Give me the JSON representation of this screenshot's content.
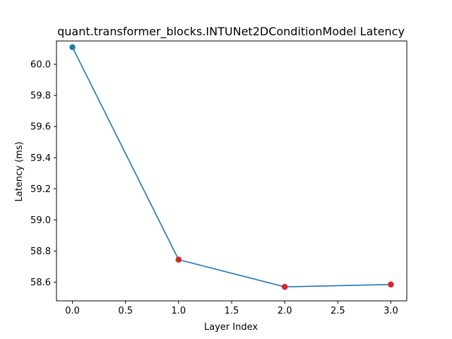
{
  "chart_data": {
    "type": "line",
    "title": "quant.transformer_blocks.INTUNet2DConditionModel Latency",
    "xlabel": "Layer Index",
    "ylabel": "Latency (ms)",
    "xlim": [
      -0.15,
      3.15
    ],
    "ylim": [
      58.48,
      60.15
    ],
    "xticks": [
      "0.0",
      "0.5",
      "1.0",
      "1.5",
      "2.0",
      "2.5",
      "3.0"
    ],
    "yticks": [
      "58.6",
      "58.8",
      "59.0",
      "59.2",
      "59.4",
      "59.6",
      "59.8",
      "60.0"
    ],
    "grid": false,
    "series": [
      {
        "x": [
          0,
          1,
          2,
          3
        ],
        "y": [
          60.11,
          58.745,
          58.57,
          58.585
        ],
        "color": "#1f77b4"
      }
    ],
    "highlighted_points": {
      "x": [
        1,
        2,
        3
      ],
      "y": [
        58.745,
        58.57,
        58.585
      ],
      "color": "#d62728"
    }
  }
}
